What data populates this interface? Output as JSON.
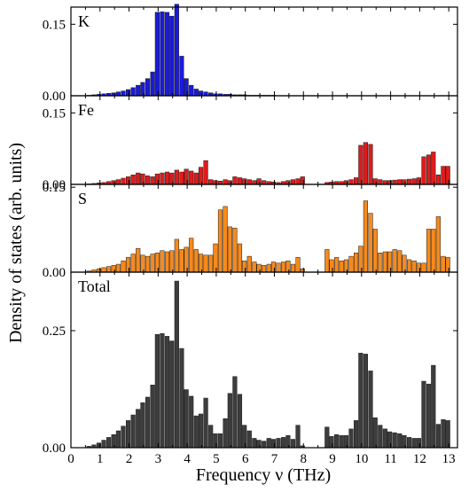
{
  "chart_data": {
    "type": "bar",
    "xlabel": "Frequency ν (THz)",
    "ylabel": "Density of states (arb. units)",
    "xlim": [
      0,
      13.3
    ],
    "x_ticks": [
      "0",
      "1",
      "2",
      "3",
      "4",
      "5",
      "6",
      "7",
      "8",
      "9",
      "10",
      "11",
      "12",
      "13"
    ],
    "bin_width_thz": 0.167,
    "panels": [
      {
        "label": "K",
        "color": "#1a1adb",
        "ylim": [
          0,
          0.186
        ],
        "y_ticks": [
          {
            "value": 0,
            "label": "0.00"
          },
          {
            "value": 0.15,
            "label": "0.15"
          }
        ],
        "x": [
          0.62,
          0.79,
          0.96,
          1.13,
          1.3,
          1.47,
          1.63,
          1.8,
          1.97,
          2.14,
          2.31,
          2.47,
          2.64,
          2.81,
          2.97,
          3.14,
          3.31,
          3.47,
          3.64,
          3.81,
          3.97,
          4.14,
          4.31,
          4.47,
          4.64,
          4.81,
          4.97,
          5.14,
          5.31,
          5.47,
          5.64,
          5.81,
          5.97,
          6.14,
          6.31,
          6.47,
          6.64,
          6.81,
          6.97
        ],
        "values": [
          0.001,
          0.002,
          0.003,
          0.004,
          0.005,
          0.006,
          0.008,
          0.01,
          0.013,
          0.017,
          0.022,
          0.028,
          0.036,
          0.05,
          0.175,
          0.176,
          0.175,
          0.167,
          0.192,
          0.083,
          0.036,
          0.022,
          0.014,
          0.01,
          0.008,
          0.006,
          0.004,
          0.004,
          0.003,
          0.003,
          0.002,
          0.002,
          0.002,
          0.001,
          0.001,
          0.001,
          0.001,
          0.001,
          0.001
        ]
      },
      {
        "label": "Fe",
        "color": "#dd1c1c",
        "ylim": [
          0,
          0.186
        ],
        "y_ticks": [
          {
            "value": 0,
            "label": "0.00"
          },
          {
            "value": 0.15,
            "label": "0.15"
          }
        ],
        "x": [
          0.62,
          0.79,
          0.96,
          1.13,
          1.3,
          1.47,
          1.63,
          1.8,
          1.97,
          2.14,
          2.31,
          2.47,
          2.64,
          2.81,
          2.97,
          3.14,
          3.31,
          3.47,
          3.64,
          3.81,
          3.97,
          4.14,
          4.31,
          4.47,
          4.64,
          4.81,
          4.97,
          5.14,
          5.31,
          5.47,
          5.64,
          5.81,
          5.97,
          6.14,
          6.31,
          6.47,
          6.64,
          6.81,
          6.97,
          7.14,
          7.31,
          7.47,
          7.64,
          7.81,
          7.97,
          8.14,
          8.31,
          8.47,
          8.64,
          8.81,
          8.97,
          9.14,
          9.31,
          9.47,
          9.64,
          9.81,
          9.97,
          10.14,
          10.31,
          10.47,
          10.64,
          10.81,
          10.97,
          11.14,
          11.31,
          11.47,
          11.64,
          11.81,
          11.97,
          12.14,
          12.31,
          12.47,
          12.64,
          12.81,
          12.97
        ],
        "values": [
          0.001,
          0.002,
          0.003,
          0.004,
          0.006,
          0.008,
          0.01,
          0.013,
          0.016,
          0.02,
          0.024,
          0.022,
          0.018,
          0.016,
          0.022,
          0.024,
          0.026,
          0.024,
          0.03,
          0.026,
          0.032,
          0.028,
          0.024,
          0.036,
          0.05,
          0.01,
          0.008,
          0.007,
          0.01,
          0.008,
          0.016,
          0.014,
          0.012,
          0.01,
          0.008,
          0.012,
          0.008,
          0.006,
          0.005,
          0.004,
          0.006,
          0.008,
          0.01,
          0.012,
          0.016,
          0.0,
          0.0,
          0.0,
          0.0,
          0.004,
          0.005,
          0.006,
          0.006,
          0.008,
          0.01,
          0.014,
          0.082,
          0.088,
          0.084,
          0.012,
          0.01,
          0.008,
          0.008,
          0.009,
          0.01,
          0.01,
          0.011,
          0.012,
          0.014,
          0.058,
          0.062,
          0.068,
          0.02,
          0.038,
          0.038
        ]
      },
      {
        "label": "S",
        "color": "#f58a1e",
        "ylim": [
          0,
          0.155
        ],
        "y_ticks": [
          {
            "value": 0,
            "label": "0.00"
          },
          {
            "value": 0.15,
            "label": "0.15"
          }
        ],
        "x": [
          0.62,
          0.79,
          0.96,
          1.13,
          1.3,
          1.47,
          1.63,
          1.8,
          1.97,
          2.14,
          2.31,
          2.47,
          2.64,
          2.81,
          2.97,
          3.14,
          3.31,
          3.47,
          3.64,
          3.81,
          3.97,
          4.14,
          4.31,
          4.47,
          4.64,
          4.81,
          4.97,
          5.14,
          5.31,
          5.47,
          5.64,
          5.81,
          5.97,
          6.14,
          6.31,
          6.47,
          6.64,
          6.81,
          6.97,
          7.14,
          7.31,
          7.47,
          7.64,
          7.81,
          7.97,
          8.14,
          8.31,
          8.47,
          8.64,
          8.81,
          8.97,
          9.14,
          9.31,
          9.47,
          9.64,
          9.81,
          9.97,
          10.14,
          10.31,
          10.47,
          10.64,
          10.81,
          10.97,
          11.14,
          11.31,
          11.47,
          11.64,
          11.81,
          11.97,
          12.14,
          12.31,
          12.47,
          12.64,
          12.81,
          12.97
        ],
        "values": [
          0.002,
          0.004,
          0.006,
          0.008,
          0.01,
          0.012,
          0.014,
          0.02,
          0.026,
          0.032,
          0.042,
          0.03,
          0.028,
          0.032,
          0.034,
          0.038,
          0.036,
          0.038,
          0.058,
          0.04,
          0.044,
          0.06,
          0.04,
          0.032,
          0.03,
          0.03,
          0.05,
          0.11,
          0.116,
          0.08,
          0.078,
          0.05,
          0.02,
          0.028,
          0.018,
          0.014,
          0.012,
          0.014,
          0.018,
          0.016,
          0.018,
          0.02,
          0.014,
          0.026,
          0.006,
          0.0,
          0.0,
          0.0,
          0.0,
          0.04,
          0.022,
          0.026,
          0.02,
          0.022,
          0.028,
          0.034,
          0.046,
          0.126,
          0.104,
          0.076,
          0.034,
          0.036,
          0.036,
          0.04,
          0.038,
          0.03,
          0.022,
          0.02,
          0.016,
          0.016,
          0.076,
          0.076,
          0.098,
          0.028,
          0.026
        ]
      },
      {
        "label": "Total",
        "color": "#3d3d3d",
        "ylim": [
          0,
          0.375
        ],
        "y_ticks": [
          {
            "value": 0,
            "label": "0.00"
          },
          {
            "value": 0.25,
            "label": "0.25"
          }
        ],
        "x": [
          0.62,
          0.79,
          0.96,
          1.13,
          1.3,
          1.47,
          1.63,
          1.8,
          1.97,
          2.14,
          2.31,
          2.47,
          2.64,
          2.81,
          2.97,
          3.14,
          3.31,
          3.47,
          3.64,
          3.81,
          3.97,
          4.14,
          4.31,
          4.47,
          4.64,
          4.81,
          4.97,
          5.14,
          5.31,
          5.47,
          5.64,
          5.81,
          5.97,
          6.14,
          6.31,
          6.47,
          6.64,
          6.81,
          6.97,
          7.14,
          7.31,
          7.47,
          7.64,
          7.81,
          7.97,
          8.14,
          8.31,
          8.47,
          8.64,
          8.81,
          8.97,
          9.14,
          9.31,
          9.47,
          9.64,
          9.81,
          9.97,
          10.14,
          10.31,
          10.47,
          10.64,
          10.81,
          10.97,
          11.14,
          11.31,
          11.47,
          11.64,
          11.81,
          11.97,
          12.14,
          12.31,
          12.47,
          12.64,
          12.81,
          12.97
        ],
        "values": [
          0.003,
          0.006,
          0.01,
          0.016,
          0.022,
          0.028,
          0.036,
          0.046,
          0.058,
          0.07,
          0.082,
          0.096,
          0.108,
          0.134,
          0.242,
          0.244,
          0.238,
          0.228,
          0.356,
          0.212,
          0.124,
          0.11,
          0.068,
          0.072,
          0.106,
          0.048,
          0.03,
          0.03,
          0.062,
          0.116,
          0.152,
          0.114,
          0.048,
          0.036,
          0.02,
          0.016,
          0.014,
          0.02,
          0.018,
          0.02,
          0.022,
          0.026,
          0.018,
          0.048,
          0.004,
          0.0,
          0.0,
          0.0,
          0.0,
          0.044,
          0.024,
          0.028,
          0.026,
          0.026,
          0.04,
          0.058,
          0.202,
          0.2,
          0.164,
          0.064,
          0.048,
          0.04,
          0.034,
          0.032,
          0.03,
          0.026,
          0.022,
          0.02,
          0.02,
          0.142,
          0.136,
          0.176,
          0.05,
          0.06,
          0.058
        ]
      }
    ]
  }
}
